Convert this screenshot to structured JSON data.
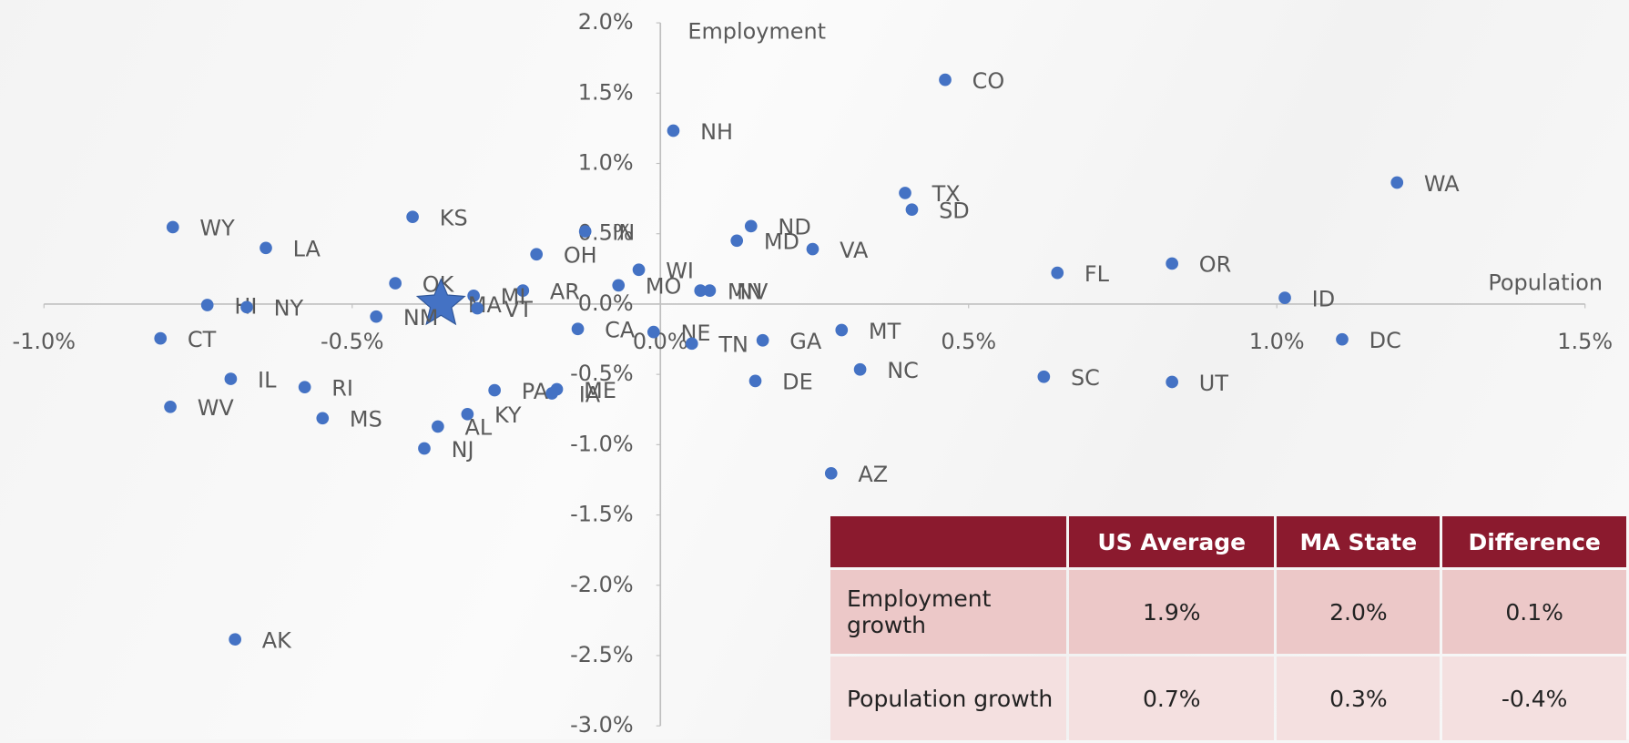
{
  "chart_data": {
    "type": "scatter",
    "x_label": "Population",
    "y_label": "Employment",
    "color": "#4472c4",
    "highlight": "MA",
    "categories": [
      "CO",
      "NH",
      "WA",
      "TX",
      "SD",
      "WY",
      "KS",
      "LA",
      "IN",
      "ND",
      "MD",
      "VA",
      "OH",
      "OR",
      "WI",
      "FL",
      "OK",
      "MO",
      "MN",
      "NV",
      "AR",
      "MI",
      "ID",
      "HI",
      "NY",
      "MA",
      "VT",
      "NM",
      "CA",
      "NE",
      "TN",
      "GA",
      "MT",
      "CT",
      "DC",
      "NC",
      "SC",
      "UT",
      "DE",
      "IL",
      "RI",
      "PA",
      "ME",
      "IA",
      "WV",
      "KY",
      "MS",
      "AL",
      "NJ",
      "AZ",
      "AK"
    ],
    "x": [
      0.462,
      0.021,
      1.195,
      0.397,
      0.408,
      -0.791,
      -0.402,
      -0.64,
      -0.122,
      0.147,
      0.124,
      0.247,
      -0.201,
      0.83,
      -0.035,
      0.644,
      -0.43,
      -0.068,
      0.065,
      0.08,
      -0.223,
      -0.303,
      1.013,
      -0.735,
      -0.671,
      -0.356,
      -0.297,
      -0.461,
      -0.134,
      -0.011,
      0.051,
      0.166,
      0.294,
      -0.811,
      1.106,
      0.324,
      0.622,
      0.83,
      0.154,
      -0.697,
      -0.577,
      -0.269,
      -0.168,
      -0.176,
      -0.795,
      -0.313,
      -0.548,
      -0.361,
      -0.383,
      0.277,
      -0.69
    ],
    "values": [
      1.595,
      1.233,
      0.864,
      0.79,
      0.672,
      0.547,
      0.62,
      0.399,
      0.517,
      0.554,
      0.451,
      0.391,
      0.354,
      0.288,
      0.244,
      0.222,
      0.148,
      0.133,
      0.096,
      0.096,
      0.096,
      0.059,
      0.044,
      -0.007,
      -0.022,
      0,
      -0.03,
      -0.089,
      -0.177,
      -0.199,
      -0.281,
      -0.258,
      -0.185,
      -0.244,
      -0.251,
      -0.465,
      -0.517,
      -0.554,
      -0.547,
      -0.532,
      -0.591,
      -0.613,
      -0.606,
      -0.635,
      -0.731,
      -0.783,
      -0.812,
      -0.871,
      -1.027,
      -1.204,
      -2.385
    ],
    "xlim": [
      -1.0,
      1.5
    ],
    "xticks": [
      {
        "value": -1.0,
        "label": "-1.0%"
      },
      {
        "value": -0.5,
        "label": "-0.5%"
      },
      {
        "value": 0,
        "label": "0.0%"
      },
      {
        "value": 0.5,
        "label": "0.5%"
      },
      {
        "value": 1.0,
        "label": "1.0%"
      },
      {
        "value": 1.5,
        "label": "1.5%"
      }
    ],
    "ylim": [
      -3.0,
      2.0
    ],
    "yticks": [
      {
        "value": 2.0,
        "label": "2.0%"
      },
      {
        "value": 1.5,
        "label": "1.5%"
      },
      {
        "value": 1.0,
        "label": "1.0%"
      },
      {
        "value": 0.5,
        "label": "0.5%"
      },
      {
        "value": 0,
        "label": "0.0%"
      },
      {
        "value": -0.5,
        "label": "-0.5%"
      },
      {
        "value": -1.0,
        "label": "-1.0%"
      },
      {
        "value": -1.5,
        "label": "-1.5%"
      },
      {
        "value": -2.0,
        "label": "-2.0%"
      },
      {
        "value": -2.5,
        "label": "-2.5%"
      },
      {
        "value": -3.0,
        "label": "-3.0%"
      }
    ]
  },
  "table": {
    "header": [
      "",
      "US Average",
      "MA State",
      "Difference"
    ],
    "rows": [
      [
        "Employment growth",
        "1.9%",
        "2.0%",
        "0.1%"
      ],
      [
        "Population growth",
        "0.7%",
        "0.3%",
        "-0.4%"
      ]
    ]
  }
}
